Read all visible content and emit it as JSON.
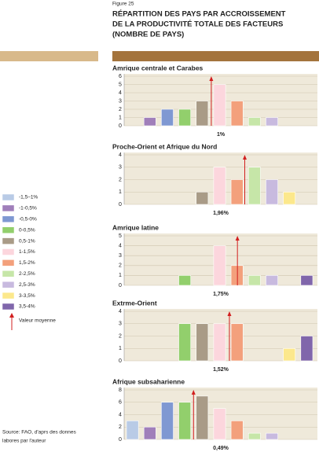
{
  "figure": "Figure 25",
  "title": [
    "RÉPARTITION DES PAYS PAR ACCROISSEMENT",
    "DE LA PRODUCTIVITÉ TOTALE DES FACTEURS",
    "(NOMBRE DE PAYS)"
  ],
  "legend": {
    "categories": [
      "-1,5–1%",
      "-1-0,5%",
      "-0,5-0%",
      "0-0,5%",
      "0,5-1%",
      "1-1,5%",
      "1,5-2%",
      "2-2,5%",
      "2,5-3%",
      "3-3,5%",
      "3,5-4%"
    ],
    "colors": [
      "#b9cbe6",
      "#a07fba",
      "#7f98d2",
      "#92cf6c",
      "#a99b87",
      "#fcd6dd",
      "#f3a07c",
      "#c6e6a8",
      "#c8badf",
      "#fce88c",
      "#8066ab"
    ],
    "mean_label": "Valeur moyenne"
  },
  "source": [
    "Source: FAO, d'aprs des donnes",
    "labores par l'auteur"
  ],
  "chart_data": [
    {
      "type": "bar",
      "title": "Amrique centrale et Carabes",
      "values": [
        0,
        1,
        2,
        2,
        3,
        5,
        3,
        1,
        1,
        0,
        0
      ],
      "ylim": [
        0,
        6
      ],
      "yticks": [
        0,
        1,
        2,
        3,
        4,
        5,
        6
      ],
      "xlim": [
        -1.5,
        4
      ],
      "mean": 1,
      "mean_label": "1%",
      "grid": true
    },
    {
      "type": "bar",
      "title": "Proche-Orient et Afrique du Nord",
      "values": [
        0,
        0,
        0,
        0,
        1,
        3,
        2,
        3,
        2,
        1,
        0
      ],
      "ylim": [
        0,
        4
      ],
      "yticks": [
        0,
        1,
        2,
        3,
        4
      ],
      "xlim": [
        -1.5,
        4
      ],
      "mean": 1.96,
      "mean_label": "1,96%",
      "grid": true
    },
    {
      "type": "bar",
      "title": "Amrique latine",
      "values": [
        0,
        0,
        0,
        1,
        0,
        4,
        2,
        1,
        1,
        0,
        1
      ],
      "ylim": [
        0,
        5
      ],
      "yticks": [
        0,
        1,
        2,
        3,
        4,
        5
      ],
      "xlim": [
        -1.5,
        4
      ],
      "mean": 1.75,
      "mean_label": "1,75%",
      "grid": true
    },
    {
      "type": "bar",
      "title": "Extrme-Orient",
      "values": [
        0,
        0,
        0,
        3,
        3,
        3,
        3,
        0,
        0,
        1,
        2
      ],
      "ylim": [
        0,
        4
      ],
      "yticks": [
        0,
        1,
        2,
        3,
        4
      ],
      "xlim": [
        -1.5,
        4
      ],
      "mean": 1.52,
      "mean_label": "1,52%",
      "grid": true
    },
    {
      "type": "bar",
      "title": "Afrique subsaharienne",
      "values": [
        3,
        2,
        6,
        6,
        7,
        5,
        3,
        1,
        1,
        0,
        0
      ],
      "ylim": [
        0,
        8
      ],
      "yticks": [
        0,
        2,
        4,
        6,
        8
      ],
      "xlim": [
        -1.5,
        4
      ],
      "mean": 0.49,
      "mean_label": "0,49%",
      "grid": true
    }
  ]
}
